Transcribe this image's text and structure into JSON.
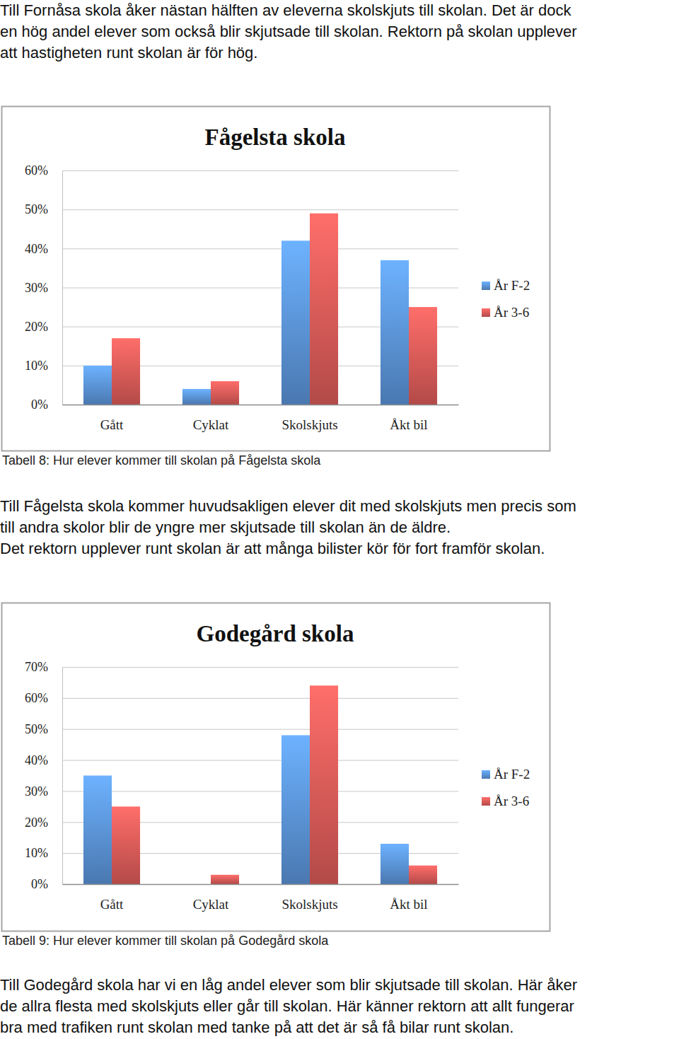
{
  "intro": [
    "Till Fornåsa skola åker nästan hälften av eleverna skolskjuts till skolan. Det är dock",
    "en hög andel elever som också blir skjutsade till skolan. Rektorn på skolan upplever",
    "att hastigheten runt skolan är för hög."
  ],
  "chart_data": [
    {
      "type": "bar",
      "title": "Fågelsta skola",
      "categories": [
        "Gått",
        "Cyklat",
        "Skolskjuts",
        "Åkt bil"
      ],
      "series": [
        {
          "name": "År F-2",
          "color": "#4f81bd",
          "values": [
            10,
            4,
            42,
            37
          ]
        },
        {
          "name": "År 3-6",
          "color": "#c0504d",
          "values": [
            17,
            6,
            49,
            25
          ]
        }
      ],
      "ylim": [
        0,
        60
      ],
      "yticks": [
        {
          "value": 0,
          "label": "0%"
        },
        {
          "value": 10,
          "label": "10%"
        },
        {
          "value": 20,
          "label": "20%"
        },
        {
          "value": 30,
          "label": "30%"
        },
        {
          "value": 40,
          "label": "40%"
        },
        {
          "value": 50,
          "label": "50%"
        },
        {
          "value": 60,
          "label": "60%"
        }
      ],
      "grid": true,
      "legend": "right"
    },
    {
      "type": "bar",
      "title": "Godegård skola",
      "categories": [
        "Gått",
        "Cyklat",
        "Skolskjuts",
        "Åkt bil"
      ],
      "series": [
        {
          "name": "År F-2",
          "color": "#4f81bd",
          "values": [
            35,
            0,
            48,
            13
          ]
        },
        {
          "name": "År 3-6",
          "color": "#c0504d",
          "values": [
            25,
            3,
            64,
            6
          ]
        }
      ],
      "ylim": [
        0,
        70
      ],
      "yticks": [
        {
          "value": 0,
          "label": "0%"
        },
        {
          "value": 10,
          "label": "10%"
        },
        {
          "value": 20,
          "label": "20%"
        },
        {
          "value": 30,
          "label": "30%"
        },
        {
          "value": 40,
          "label": "40%"
        },
        {
          "value": 50,
          "label": "50%"
        },
        {
          "value": 60,
          "label": "60%"
        },
        {
          "value": 70,
          "label": "70%"
        }
      ],
      "grid": true,
      "legend": "right"
    }
  ],
  "captions": [
    "Tabell 8: Hur elever kommer till skolan på Fågelsta skola",
    "Tabell 9: Hur elever kommer till skolan på Godegård skola"
  ],
  "paragraphs": [
    [
      "Till Fågelsta skola kommer huvudsakligen elever dit med skolskjuts men precis som",
      "till andra skolor blir de yngre mer skjutsade till skolan än de äldre.",
      "Det rektorn upplever runt skolan är att många bilister kör för fort framför skolan."
    ],
    [
      "Till Godegård skola har vi en låg andel elever som blir skjutsade till skolan. Här åker",
      "de allra flesta med skolskjuts eller går till skolan. Här känner rektorn att allt fungerar",
      "bra med trafiken runt skolan med tanke på att det är så få bilar runt skolan."
    ]
  ]
}
